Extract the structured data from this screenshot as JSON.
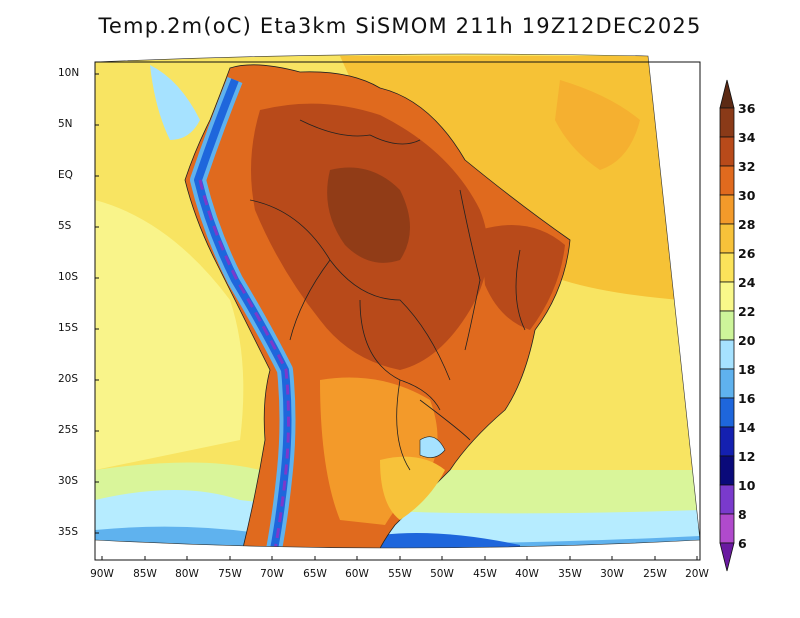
{
  "title": "Temp.2m(oC) Eta3km SiSMOM 211h 19Z12DEC2025",
  "lat_labels": [
    "10N",
    "5N",
    "EQ",
    "5S",
    "10S",
    "15S",
    "20S",
    "25S",
    "30S",
    "35S"
  ],
  "lon_labels": [
    "90W",
    "85W",
    "80W",
    "75W",
    "70W",
    "65W",
    "60W",
    "55W",
    "50W",
    "45W",
    "40W",
    "35W",
    "30W",
    "25W",
    "20W"
  ],
  "colorbar": {
    "labels": [
      "36",
      "34",
      "32",
      "30",
      "28",
      "26",
      "24",
      "22",
      "20",
      "18",
      "16",
      "14",
      "12",
      "10",
      "8",
      "6"
    ],
    "colors": [
      "#5c2a14",
      "#8a3a18",
      "#b84a1a",
      "#e06a1e",
      "#f39a2a",
      "#f7c23a",
      "#fbe35a",
      "#f9f88a",
      "#cdf59a",
      "#a6e2ff",
      "#5fb2ee",
      "#1e66dc",
      "#1420b0",
      "#0a0a7a",
      "#7a3acc",
      "#b04acc",
      "#6a1aa0"
    ]
  }
}
